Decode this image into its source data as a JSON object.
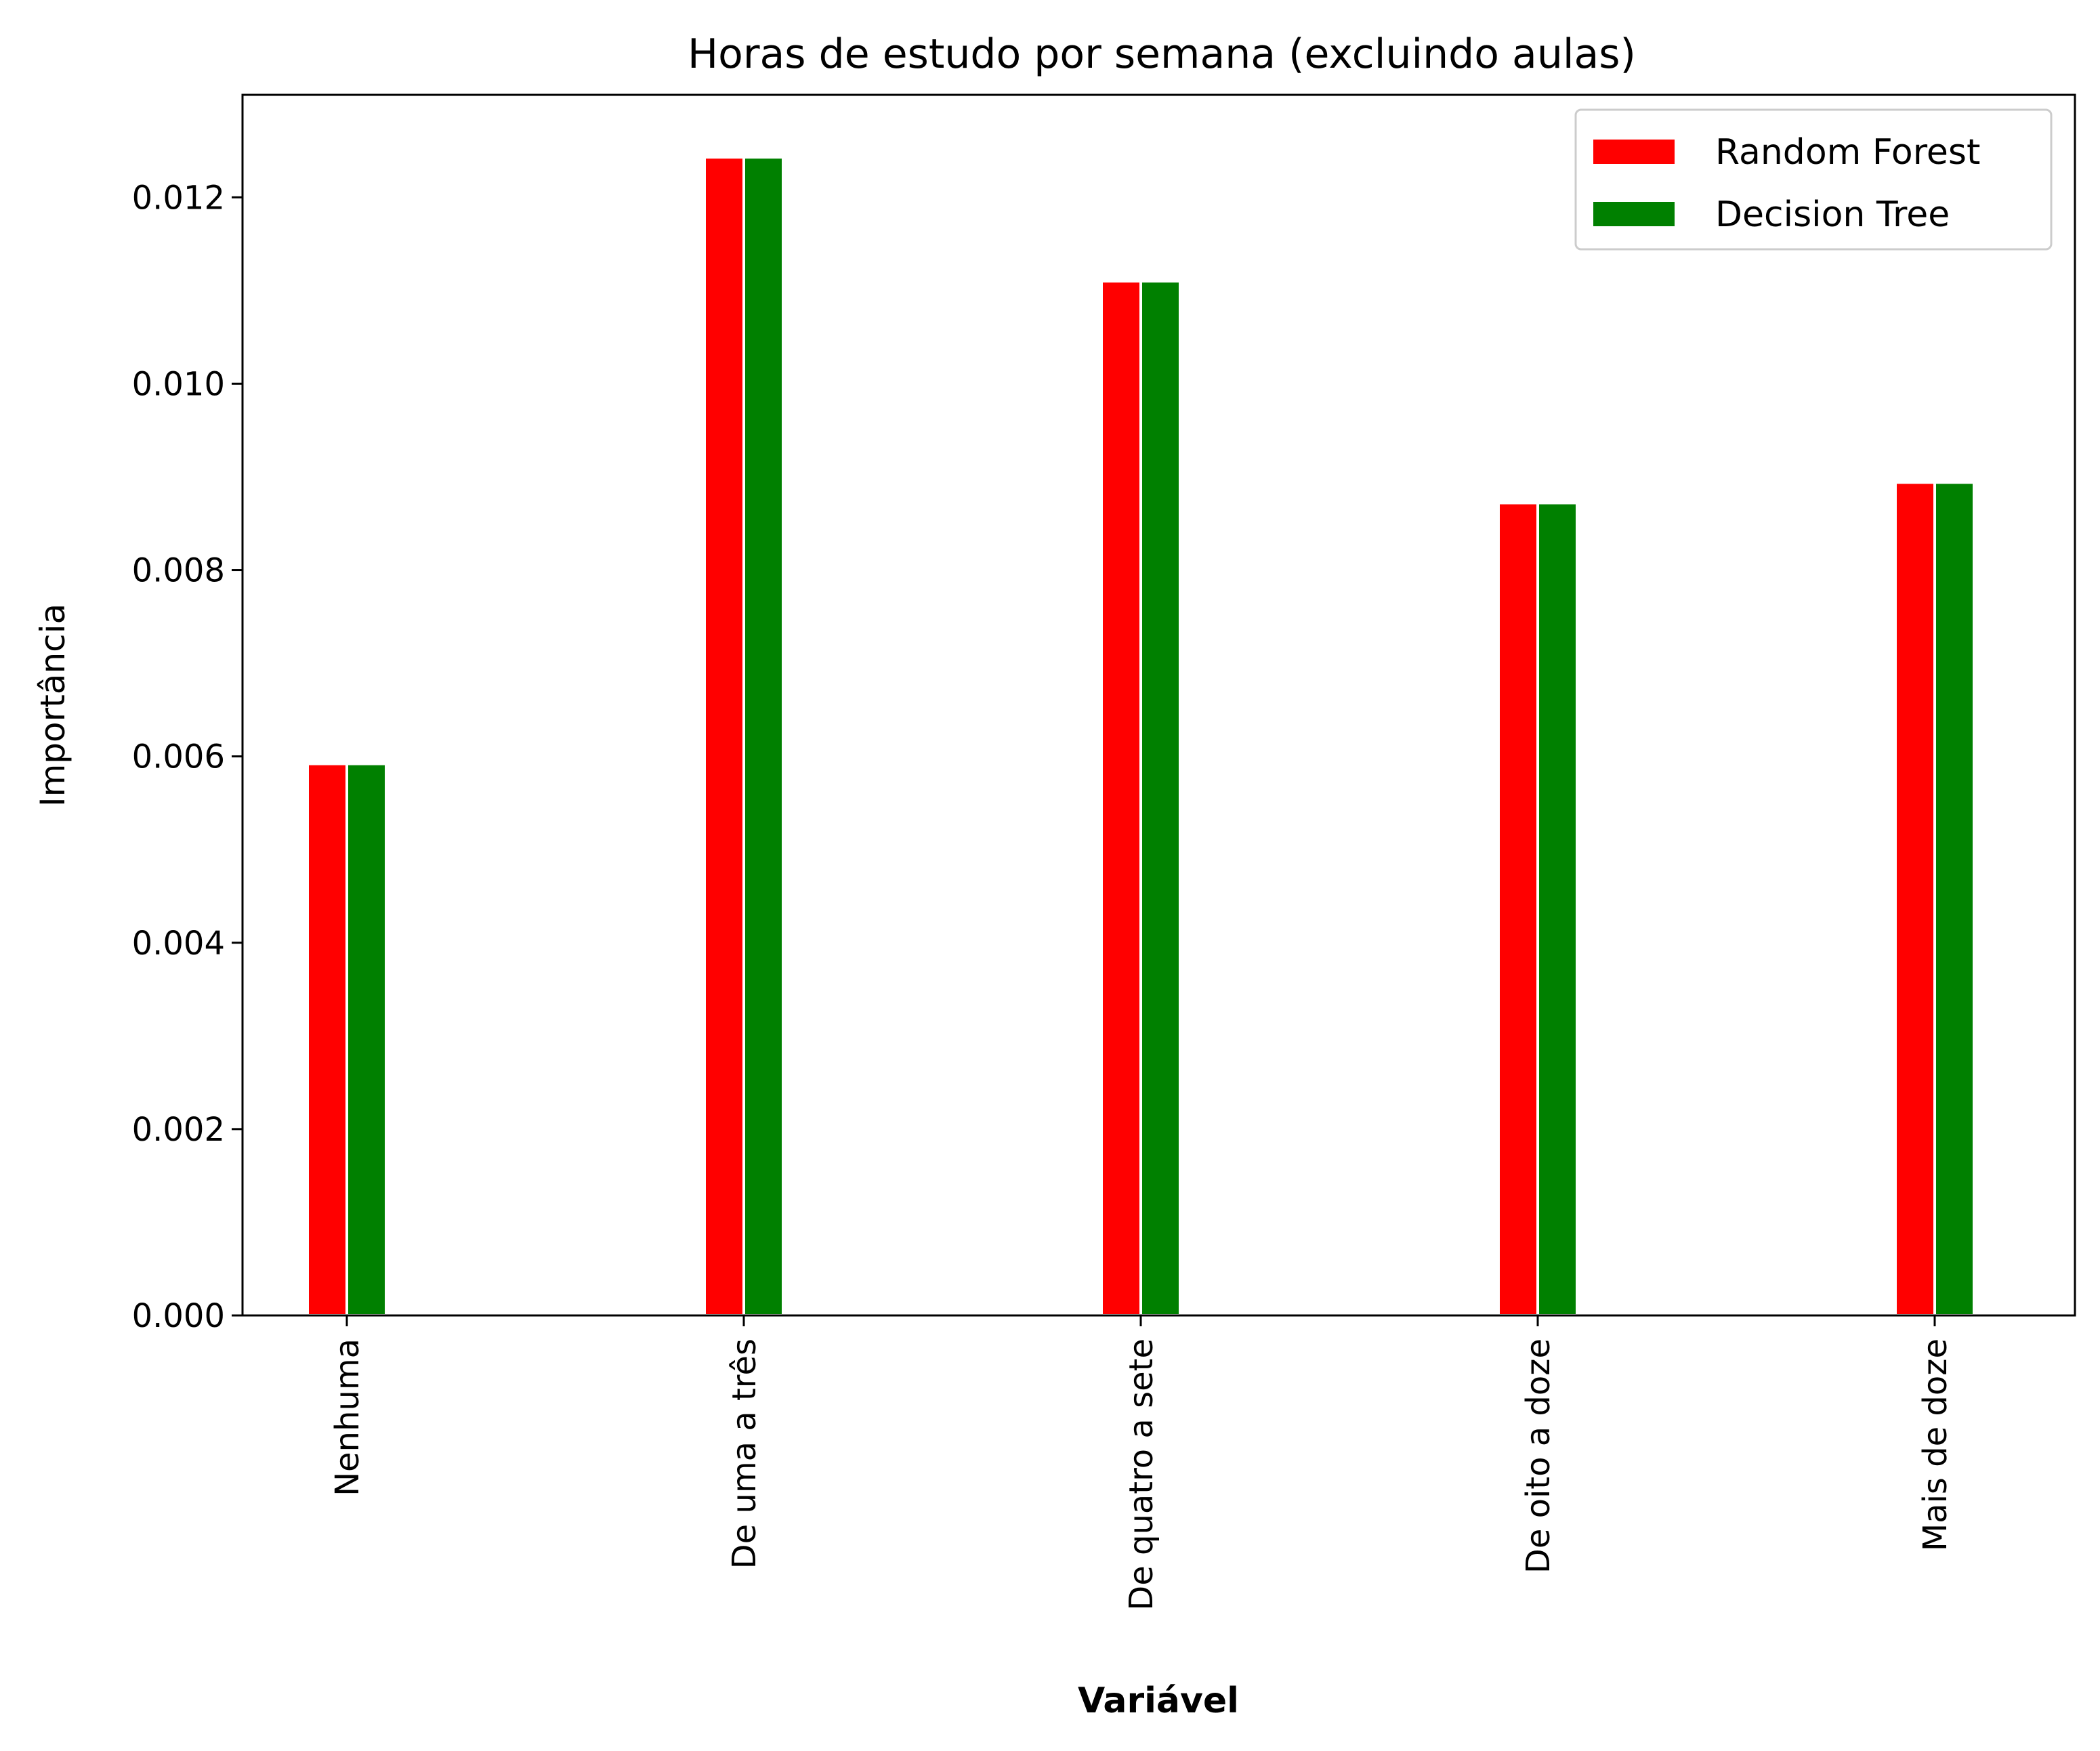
{
  "chart_data": {
    "type": "bar",
    "title": "Horas de estudo por semana (excluindo aulas)",
    "xlabel": "Variável",
    "ylabel": "Importância",
    "categories": [
      "Nenhuma",
      "De uma a três",
      "De quatro a sete",
      "De oito a doze",
      "Mais de doze"
    ],
    "series": [
      {
        "name": "Random Forest",
        "color": "#ff0000",
        "values": [
          0.00592,
          0.01243,
          0.0111,
          0.00872,
          0.00894
        ]
      },
      {
        "name": "Decision Tree",
        "color": "#008000",
        "values": [
          0.00592,
          0.01243,
          0.0111,
          0.00872,
          0.00894
        ]
      }
    ],
    "ylim": [
      0,
      0.0131
    ],
    "yticks": [
      "0.000",
      "0.002",
      "0.004",
      "0.006",
      "0.008",
      "0.010",
      "0.012"
    ],
    "legend": "top-right",
    "grid": false
  }
}
